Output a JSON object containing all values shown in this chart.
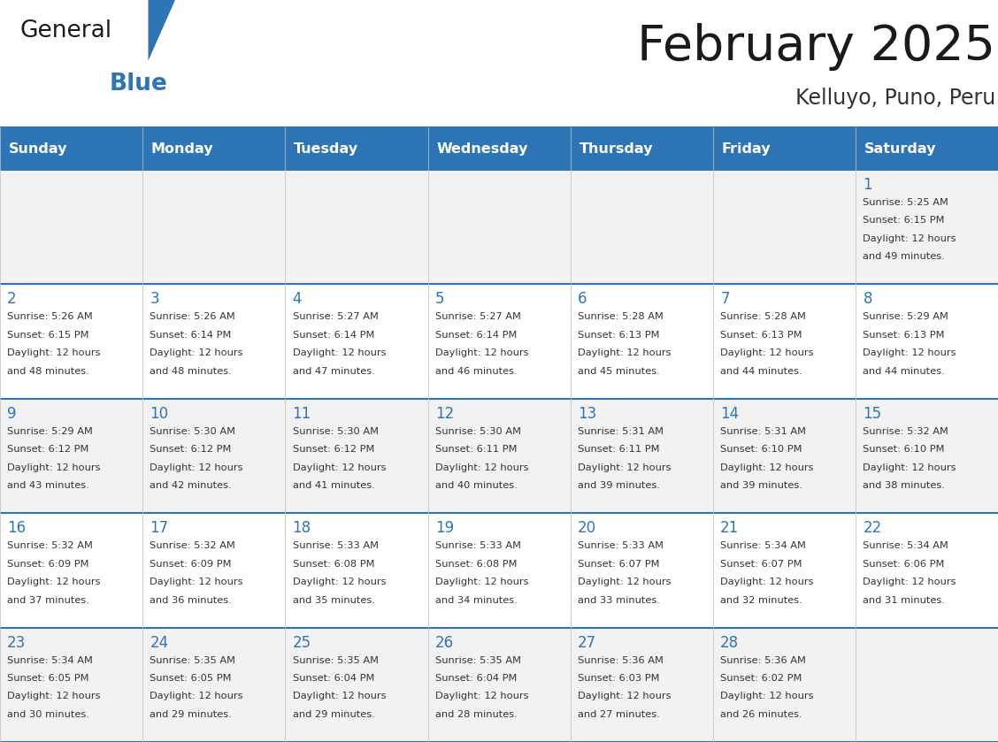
{
  "title": "February 2025",
  "subtitle": "Kelluyo, Puno, Peru",
  "header_bg": "#2E75B6",
  "header_text_color": "#FFFFFF",
  "row_bg_odd": "#F2F2F2",
  "row_bg_even": "#FFFFFF",
  "border_color_h": "#2E75B6",
  "border_color_v": "#CCCCCC",
  "title_color": "#1a1a1a",
  "subtitle_color": "#333333",
  "day_number_color": "#2E75B6",
  "cell_text_color": "#333333",
  "logo_general_color": "#1a1a1a",
  "logo_blue_color": "#2E75B6",
  "logo_triangle_color": "#2E75B6",
  "day_names": [
    "Sunday",
    "Monday",
    "Tuesday",
    "Wednesday",
    "Thursday",
    "Friday",
    "Saturday"
  ],
  "calendar_data": [
    [
      null,
      null,
      null,
      null,
      null,
      null,
      {
        "day": 1,
        "sunrise": "5:25 AM",
        "sunset": "6:15 PM",
        "daylight_suffix": "49 minutes."
      }
    ],
    [
      {
        "day": 2,
        "sunrise": "5:26 AM",
        "sunset": "6:15 PM",
        "daylight_suffix": "48 minutes."
      },
      {
        "day": 3,
        "sunrise": "5:26 AM",
        "sunset": "6:14 PM",
        "daylight_suffix": "48 minutes."
      },
      {
        "day": 4,
        "sunrise": "5:27 AM",
        "sunset": "6:14 PM",
        "daylight_suffix": "47 minutes."
      },
      {
        "day": 5,
        "sunrise": "5:27 AM",
        "sunset": "6:14 PM",
        "daylight_suffix": "46 minutes."
      },
      {
        "day": 6,
        "sunrise": "5:28 AM",
        "sunset": "6:13 PM",
        "daylight_suffix": "45 minutes."
      },
      {
        "day": 7,
        "sunrise": "5:28 AM",
        "sunset": "6:13 PM",
        "daylight_suffix": "44 minutes."
      },
      {
        "day": 8,
        "sunrise": "5:29 AM",
        "sunset": "6:13 PM",
        "daylight_suffix": "44 minutes."
      }
    ],
    [
      {
        "day": 9,
        "sunrise": "5:29 AM",
        "sunset": "6:12 PM",
        "daylight_suffix": "43 minutes."
      },
      {
        "day": 10,
        "sunrise": "5:30 AM",
        "sunset": "6:12 PM",
        "daylight_suffix": "42 minutes."
      },
      {
        "day": 11,
        "sunrise": "5:30 AM",
        "sunset": "6:12 PM",
        "daylight_suffix": "41 minutes."
      },
      {
        "day": 12,
        "sunrise": "5:30 AM",
        "sunset": "6:11 PM",
        "daylight_suffix": "40 minutes."
      },
      {
        "day": 13,
        "sunrise": "5:31 AM",
        "sunset": "6:11 PM",
        "daylight_suffix": "39 minutes."
      },
      {
        "day": 14,
        "sunrise": "5:31 AM",
        "sunset": "6:10 PM",
        "daylight_suffix": "39 minutes."
      },
      {
        "day": 15,
        "sunrise": "5:32 AM",
        "sunset": "6:10 PM",
        "daylight_suffix": "38 minutes."
      }
    ],
    [
      {
        "day": 16,
        "sunrise": "5:32 AM",
        "sunset": "6:09 PM",
        "daylight_suffix": "37 minutes."
      },
      {
        "day": 17,
        "sunrise": "5:32 AM",
        "sunset": "6:09 PM",
        "daylight_suffix": "36 minutes."
      },
      {
        "day": 18,
        "sunrise": "5:33 AM",
        "sunset": "6:08 PM",
        "daylight_suffix": "35 minutes."
      },
      {
        "day": 19,
        "sunrise": "5:33 AM",
        "sunset": "6:08 PM",
        "daylight_suffix": "34 minutes."
      },
      {
        "day": 20,
        "sunrise": "5:33 AM",
        "sunset": "6:07 PM",
        "daylight_suffix": "33 minutes."
      },
      {
        "day": 21,
        "sunrise": "5:34 AM",
        "sunset": "6:07 PM",
        "daylight_suffix": "32 minutes."
      },
      {
        "day": 22,
        "sunrise": "5:34 AM",
        "sunset": "6:06 PM",
        "daylight_suffix": "31 minutes."
      }
    ],
    [
      {
        "day": 23,
        "sunrise": "5:34 AM",
        "sunset": "6:05 PM",
        "daylight_suffix": "30 minutes."
      },
      {
        "day": 24,
        "sunrise": "5:35 AM",
        "sunset": "6:05 PM",
        "daylight_suffix": "29 minutes."
      },
      {
        "day": 25,
        "sunrise": "5:35 AM",
        "sunset": "6:04 PM",
        "daylight_suffix": "29 minutes."
      },
      {
        "day": 26,
        "sunrise": "5:35 AM",
        "sunset": "6:04 PM",
        "daylight_suffix": "28 minutes."
      },
      {
        "day": 27,
        "sunrise": "5:36 AM",
        "sunset": "6:03 PM",
        "daylight_suffix": "27 minutes."
      },
      {
        "day": 28,
        "sunrise": "5:36 AM",
        "sunset": "6:02 PM",
        "daylight_suffix": "26 minutes."
      },
      null
    ]
  ]
}
